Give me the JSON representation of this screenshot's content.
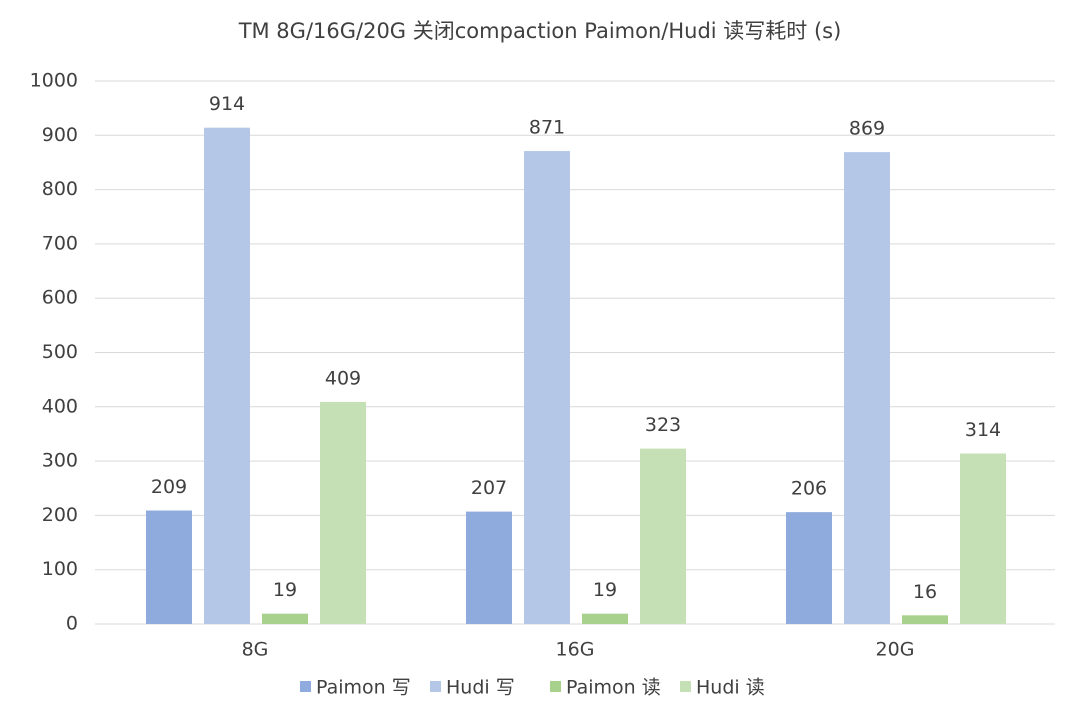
{
  "chart_data": {
    "type": "bar",
    "title": "TM 8G/16G/20G 关闭compaction Paimon/Hudi 读写耗时 (s)",
    "categories": [
      "8G",
      "16G",
      "20G"
    ],
    "series": [
      {
        "name": "Paimon 写",
        "color": "#8faadc",
        "values": [
          209,
          207,
          206
        ]
      },
      {
        "name": "Hudi 写",
        "color": "#b4c7e7",
        "values": [
          914,
          871,
          869
        ]
      },
      {
        "name": "Paimon 读",
        "color": "#a9d18e",
        "values": [
          19,
          19,
          16
        ]
      },
      {
        "name": "Hudi 读",
        "color": "#c5e0b4",
        "values": [
          409,
          323,
          314
        ]
      }
    ],
    "ylim": [
      0,
      1000
    ],
    "yticks": [
      0,
      100,
      200,
      300,
      400,
      500,
      600,
      700,
      800,
      900,
      1000
    ],
    "grid": true,
    "legend": "bottom"
  }
}
